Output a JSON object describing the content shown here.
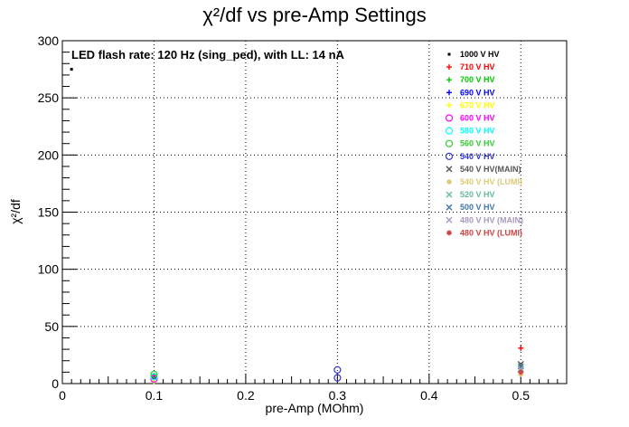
{
  "chart_data": {
    "type": "scatter",
    "title": "χ²/df vs pre-Amp Settings",
    "xlabel": "pre-Amp (MOhm)",
    "ylabel": "χ²/df",
    "annotation": "LED flash rate: 120 Hz  (sing_ped), with LL: 14 nA",
    "xlim": [
      0,
      0.55
    ],
    "ylim": [
      0,
      300
    ],
    "x_ticks": [
      "0",
      "0.1",
      "0.2",
      "0.3",
      "0.4",
      "0.5"
    ],
    "y_ticks": [
      "0",
      "50",
      "100",
      "150",
      "200",
      "250",
      "300"
    ],
    "grid": true,
    "legend_position": "top-right",
    "series": [
      {
        "name": "1000 V HV",
        "marker": "dot",
        "color": "#000000",
        "points": [
          [
            0.1,
            5
          ],
          [
            0.01,
            275
          ]
        ]
      },
      {
        "name": "710 V HV",
        "marker": "plus",
        "color": "#ff0000",
        "points": [
          [
            0.1,
            7
          ],
          [
            0.5,
            31
          ]
        ]
      },
      {
        "name": "700 V HV",
        "marker": "plus",
        "color": "#00cc00",
        "points": [
          [
            0.1,
            6
          ]
        ]
      },
      {
        "name": "690 V HV",
        "marker": "plus",
        "color": "#0000ff",
        "points": [
          [
            0.1,
            5
          ]
        ]
      },
      {
        "name": "670 V HV",
        "marker": "plus",
        "color": "#ffff00",
        "points": [
          [
            0.1,
            2
          ]
        ]
      },
      {
        "name": "600 V HV",
        "marker": "circle",
        "color": "#ff00ff",
        "points": [
          [
            0.1,
            4
          ]
        ]
      },
      {
        "name": "580 V HV",
        "marker": "circle",
        "color": "#00ffff",
        "points": [
          [
            0.1,
            6
          ]
        ]
      },
      {
        "name": "560 V HV",
        "marker": "circle",
        "color": "#33cc33",
        "points": [
          [
            0.1,
            8
          ]
        ]
      },
      {
        "name": "540 V HV",
        "marker": "circle",
        "color": "#3333cc",
        "points": [
          [
            0.3,
            5
          ],
          [
            0.3,
            12
          ]
        ]
      },
      {
        "name": "540 V HV(MAIN)",
        "marker": "cross",
        "color": "#555555",
        "points": [
          [
            0.5,
            17
          ]
        ]
      },
      {
        "name": "540 V HV (LUMI)",
        "marker": "star",
        "color": "#ddcc77",
        "points": [
          [
            0.5,
            8
          ]
        ]
      },
      {
        "name": "520 V HV",
        "marker": "cross",
        "color": "#66bb99",
        "points": [
          [
            0.5,
            13
          ]
        ]
      },
      {
        "name": "500 V HV",
        "marker": "cross",
        "color": "#4477aa",
        "points": [
          [
            0.5,
            15
          ]
        ]
      },
      {
        "name": "480 V HV (MAIN)",
        "marker": "cross",
        "color": "#aa99bb",
        "points": [
          [
            0.5,
            12
          ]
        ]
      },
      {
        "name": "480 V HV (LUMI)",
        "marker": "star",
        "color": "#cc4444",
        "points": [
          [
            0.5,
            10
          ]
        ]
      }
    ]
  }
}
